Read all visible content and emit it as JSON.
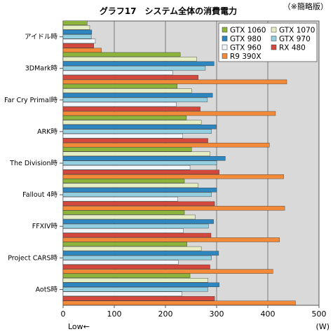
{
  "chart_data": {
    "type": "bar",
    "orientation": "horizontal",
    "title": "グラフ17　システム全体の消費電力",
    "note": "（※簡略版）",
    "xlabel": "(W)",
    "low_label": "Low←",
    "xlim": [
      0,
      500
    ],
    "xticks": [
      0,
      100,
      200,
      300,
      400,
      500
    ],
    "grid": true,
    "legend_position": "top-right",
    "categories": [
      "アイドル時",
      "3DMark時",
      "Far Cry Primal時",
      "ARK時",
      "The Division時",
      "Fallout 4時",
      "FFXIV時",
      "Project CARS時",
      "AotS時"
    ],
    "series": [
      {
        "name": "GTX 1060",
        "color": "#8cb33c",
        "values": [
          47,
          229,
          223,
          241,
          251,
          237,
          237,
          242,
          248
        ]
      },
      {
        "name": "GTX 1070",
        "color": "#e5edc4",
        "values": [
          52,
          261,
          251,
          270,
          287,
          264,
          258,
          270,
          283
        ]
      },
      {
        "name": "GTX 980",
        "color": "#2e86c1",
        "values": [
          56,
          295,
          292,
          299,
          317,
          300,
          294,
          304,
          305
        ]
      },
      {
        "name": "GTX 970",
        "color": "#93cfe0",
        "values": [
          55,
          278,
          282,
          290,
          300,
          290,
          284,
          290,
          283
        ]
      },
      {
        "name": "GTX 960",
        "color": "#f0f6fb",
        "values": [
          63,
          214,
          221,
          234,
          248,
          224,
          235,
          225,
          232
        ]
      },
      {
        "name": "RX 480",
        "color": "#d4473c",
        "values": [
          60,
          264,
          268,
          283,
          305,
          296,
          289,
          287,
          296
        ]
      },
      {
        "name": "R9 390X",
        "color": "#f28a3a",
        "values": [
          75,
          437,
          415,
          403,
          431,
          433,
          423,
          410,
          454
        ]
      }
    ]
  }
}
